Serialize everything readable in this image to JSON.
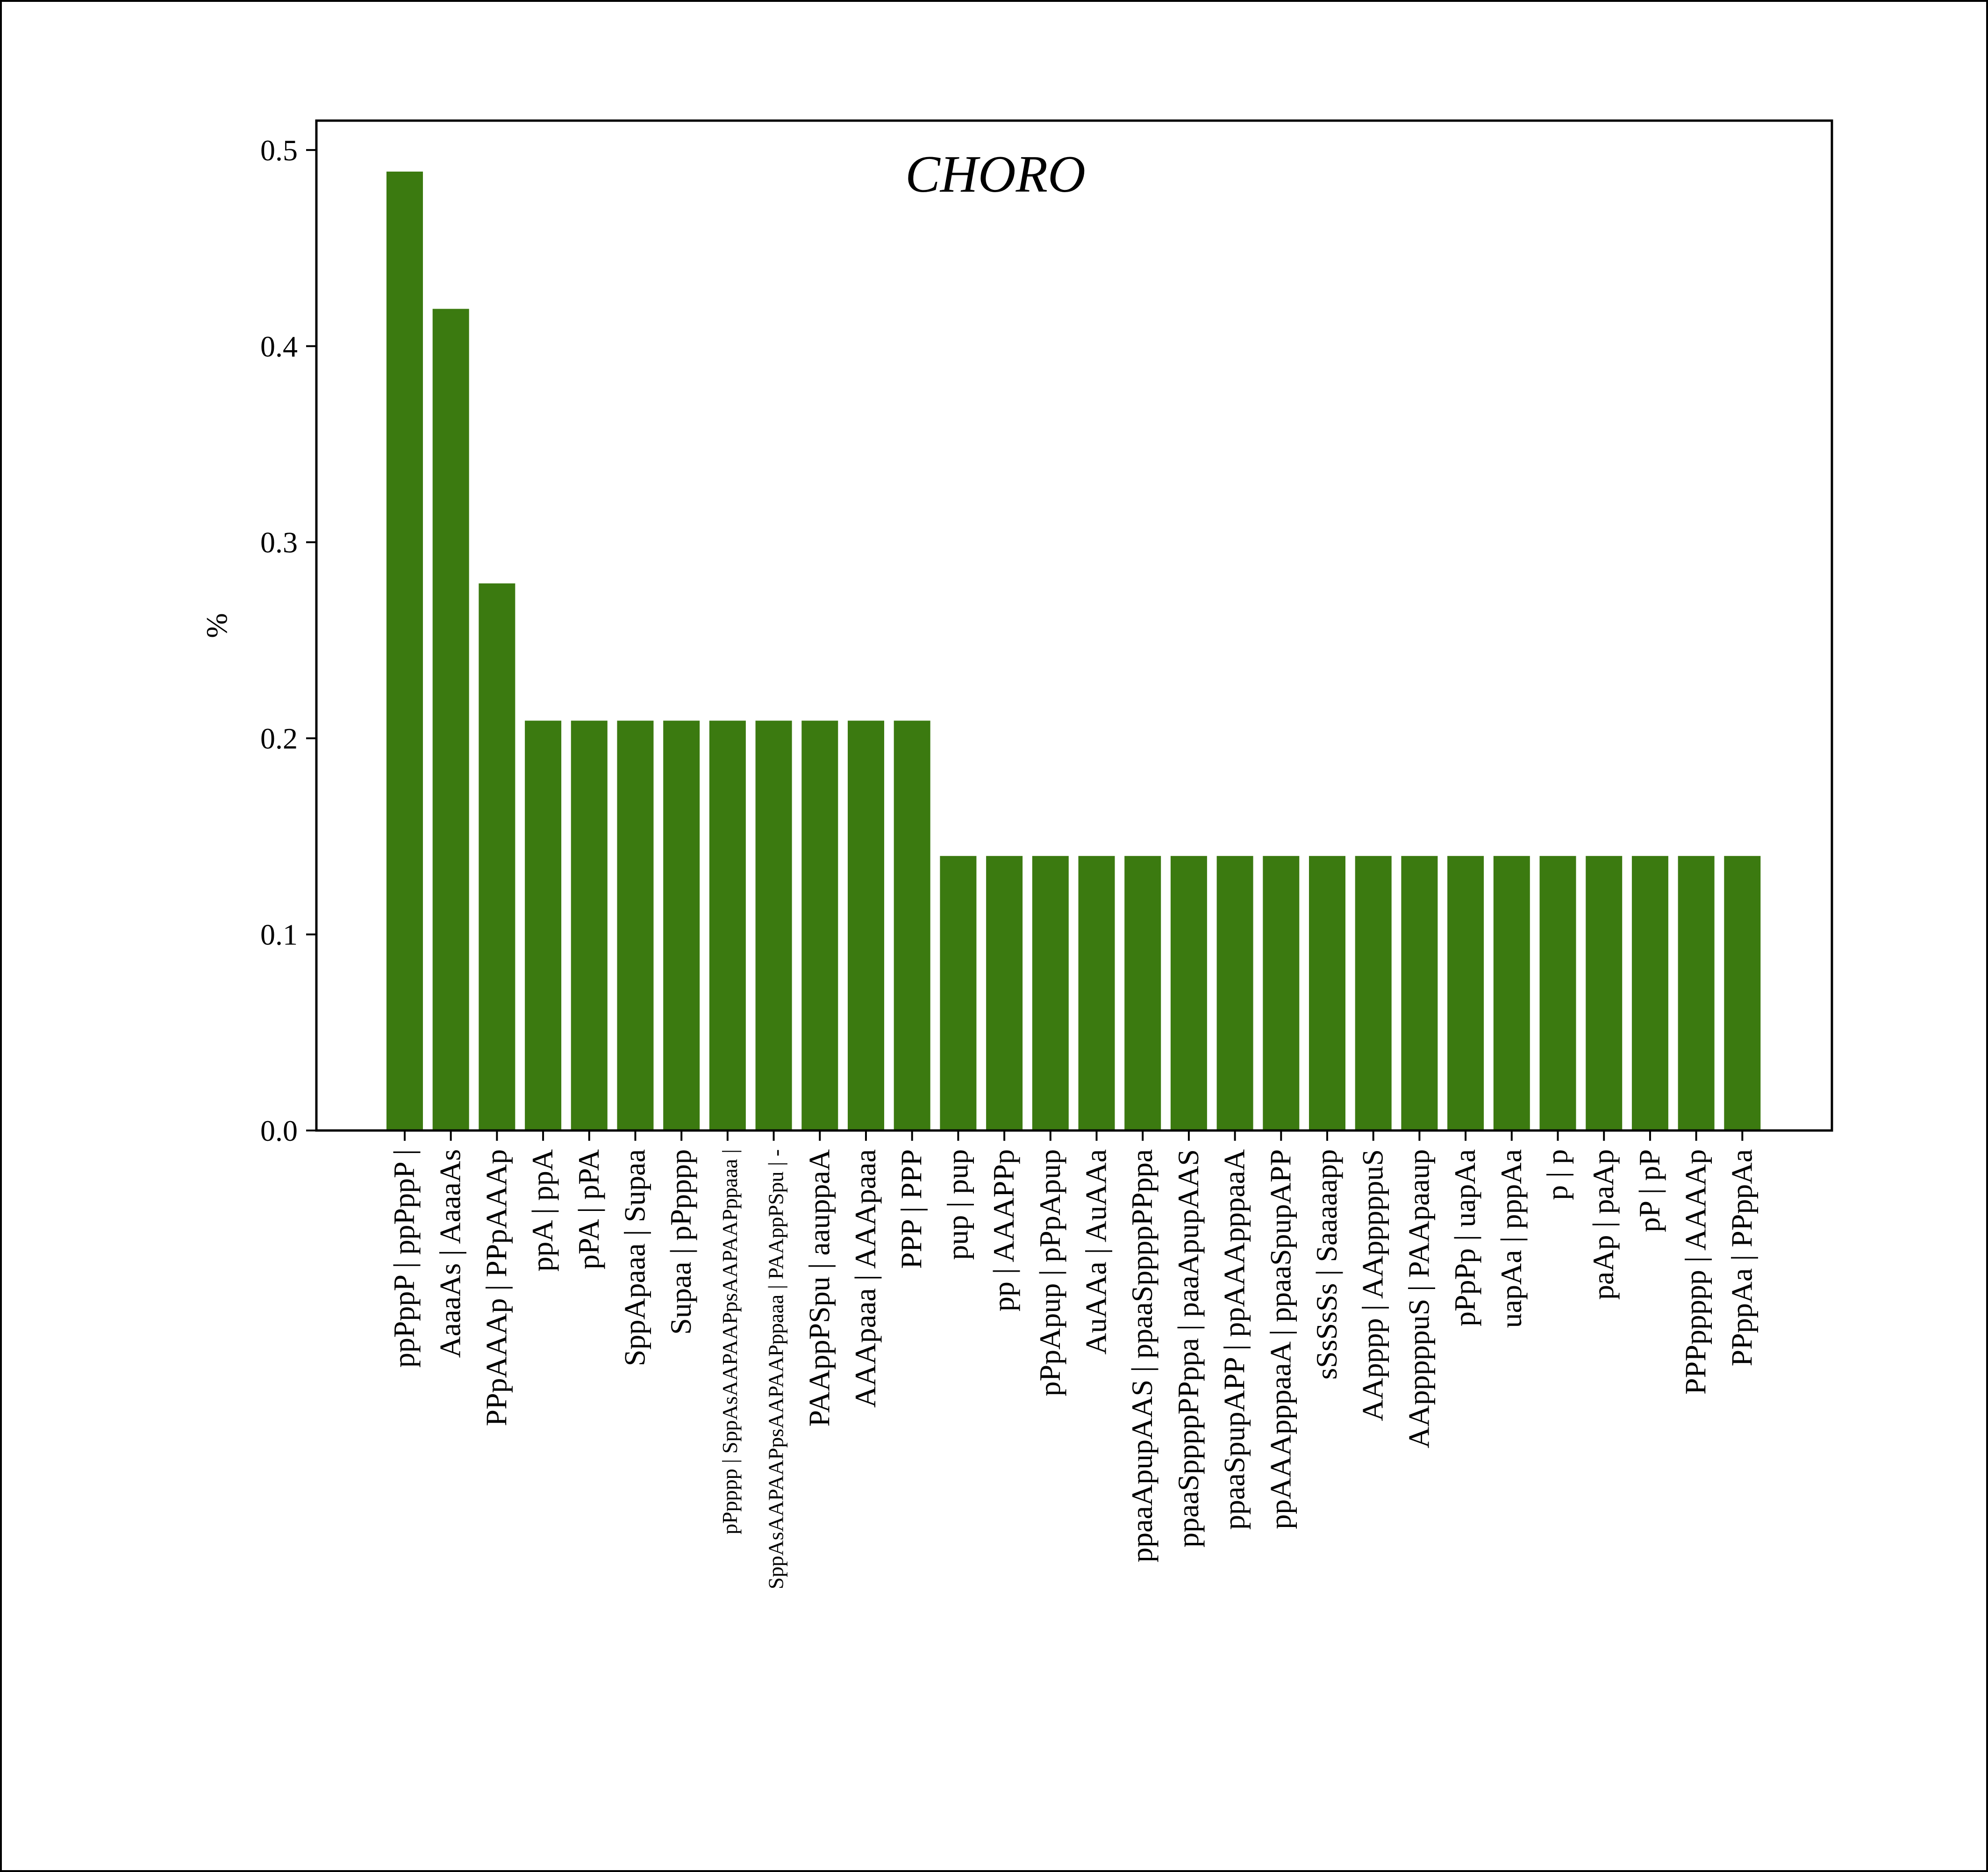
{
  "chart_data": {
    "type": "bar",
    "title": "CHORO",
    "xlabel": "",
    "ylabel": "%",
    "ylim": [
      0,
      0.515
    ],
    "yticks": [
      "0.0",
      "0.1",
      "0.2",
      "0.3",
      "0.4",
      "0.5"
    ],
    "grid": false,
    "legend": "none",
    "bar_color": "#3b7a10",
    "categories": [
      "ppPppP | ppPppP |",
      "AaaaAs | AaaaAs",
      "PPpAAAp | PPpAAAp",
      "ppA | ppA",
      "pPA | pPA",
      "SppApaaa | Supaa",
      "Supaa | pPpppp",
      "pPpppp | SppAsAAPAAPpsAAPAAPppaaa |",
      "SppAsAAPAAPpsAAPAAPppaaa | PAAppPSpu | -",
      "PAAppPSpu | aauppaA",
      "AAApaaa | AAApaaa",
      "PPP | PPP",
      "pup | pup",
      "pp | AAAPPp",
      "pPpApup | pPpApup",
      "AuAAa | AuAAa",
      "ppaaApupAAS | ppaaSppppPPppa",
      "ppaaSppppPPppa | paaApupAAS",
      "ppaaSpupAPP | ppAAApppaaA",
      "ppAAApppaaA | ppaaSpupAPP",
      "sSsSsSs | Saaaaapp",
      "AApppp | AApppppuS",
      "AApppppuS | PAApaaup",
      "pPpPp | uapAa",
      "uapAa | pppAa",
      "p | p",
      "paAp | paAp",
      "pP | pP",
      "PPPppppp | AAAAp",
      "PPppAa | PPppAa"
    ],
    "values": [
      0.489,
      0.419,
      0.279,
      0.209,
      0.209,
      0.209,
      0.209,
      0.209,
      0.209,
      0.209,
      0.209,
      0.209,
      0.14,
      0.14,
      0.14,
      0.14,
      0.14,
      0.14,
      0.14,
      0.14,
      0.14,
      0.14,
      0.14,
      0.14,
      0.14,
      0.14,
      0.14,
      0.14,
      0.14,
      0.14
    ]
  }
}
